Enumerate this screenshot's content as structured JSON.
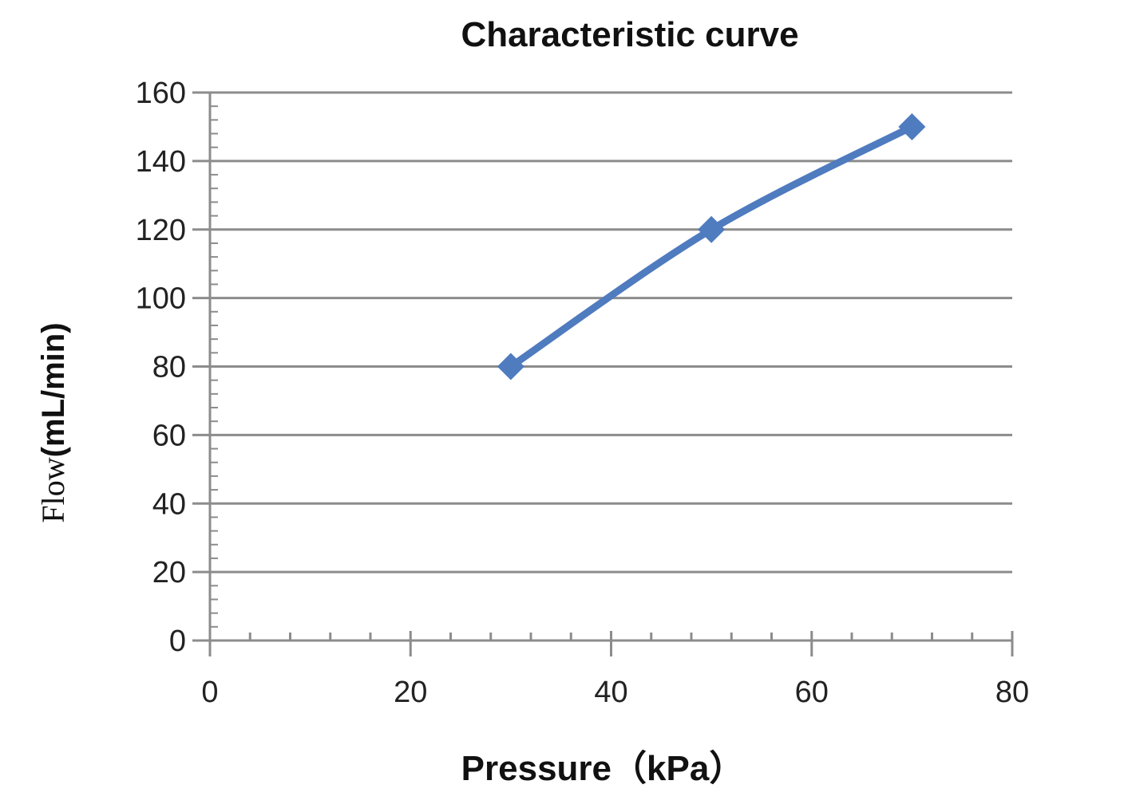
{
  "chart_data": {
    "type": "line",
    "title": "Characteristic curve",
    "xlabel": "Pressure（kPa）",
    "ylabel_parts": [
      "Flow",
      "(mL/min)"
    ],
    "xlim": [
      0,
      80
    ],
    "ylim": [
      0,
      160
    ],
    "xticks": [
      0,
      20,
      40,
      60,
      80
    ],
    "yticks": [
      0,
      20,
      40,
      60,
      80,
      100,
      120,
      140,
      160
    ],
    "x_minor_step": 4,
    "y_minor_step": 4,
    "grid": true,
    "smooth": true,
    "series": [
      {
        "color": "#4F7BBF",
        "marker": "diamond",
        "x": [
          30,
          50,
          70
        ],
        "y": [
          80,
          120,
          150
        ]
      }
    ]
  }
}
